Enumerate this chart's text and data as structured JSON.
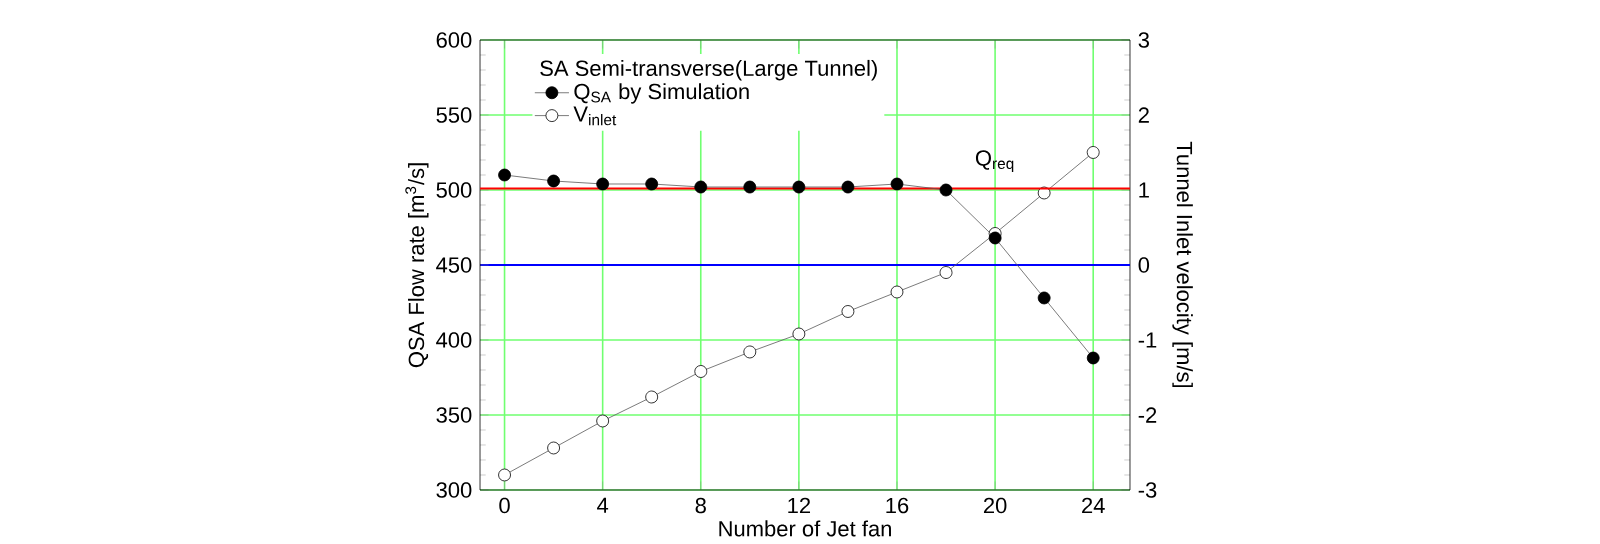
{
  "chart_data": {
    "type": "line",
    "legend_title": "SA Semi-transverse(Large Tunnel)",
    "xlabel": "Number of Jet fan",
    "ylabel": "QSA Flow rate [m$^{3}$/s]",
    "y2label": "Tunnel Inlet velocity [m/s]",
    "x": [
      0,
      2,
      4,
      6,
      8,
      10,
      12,
      14,
      16,
      18,
      20,
      22,
      24
    ],
    "series": [
      {
        "name": "Q$_{SA}$ by Simulation",
        "color": "#000000",
        "marker": "circle",
        "values": [
          510,
          506,
          504,
          504,
          502,
          502,
          502,
          502,
          504,
          500,
          468,
          428,
          388
        ]
      },
      {
        "name": "V$_{inlet}$",
        "color": "#ffffff",
        "marker": "circle",
        "axis": "y2",
        "values": [
          -2.8,
          -2.44,
          -2.08,
          -1.76,
          -1.42,
          -1.16,
          -0.92,
          -0.62,
          -0.36,
          -0.1,
          0.42,
          0.96,
          1.5
        ]
      }
    ],
    "xlim": [
      -1,
      25.5
    ],
    "xticks": [
      0,
      4,
      8,
      12,
      16,
      20,
      24
    ],
    "ylim": [
      300,
      600
    ],
    "yticks": [
      300,
      350,
      400,
      450,
      500,
      550,
      600
    ],
    "y2lim": [
      -3,
      3
    ],
    "y2ticks": [
      -3,
      -2,
      -1,
      0,
      1,
      2,
      3
    ],
    "ref_lines": [
      {
        "axis": "y",
        "value": 501,
        "label": "Q$_{req}$",
        "color": "#ff0000"
      },
      {
        "axis": "y2",
        "value": 0,
        "color": "#0000ff"
      }
    ],
    "grid": true,
    "legend": "top left",
    "line_style": "solid"
  }
}
